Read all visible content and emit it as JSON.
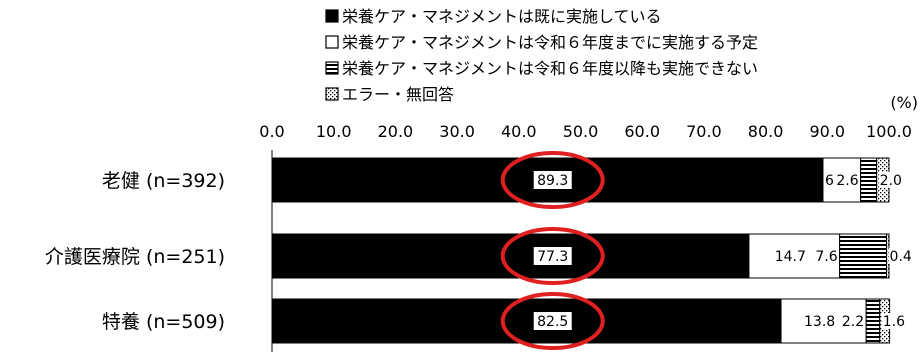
{
  "chart_data": {
    "type": "bar",
    "orientation": "horizontal",
    "stacked": true,
    "unit_label": "(%)",
    "xlim": [
      0,
      100
    ],
    "x_ticks": [
      "0.0",
      "10.0",
      "20.0",
      "30.0",
      "40.0",
      "50.0",
      "60.0",
      "70.0",
      "80.0",
      "90.0",
      "100.0"
    ],
    "categories": [
      "老健 (n=392)",
      "介護医療院 (n=251)",
      "特養 (n=509)"
    ],
    "series": [
      {
        "name": "栄養ケア・マネジメントは既に実施している",
        "values": [
          89.3,
          77.3,
          82.5
        ],
        "labels": [
          "89.3",
          "77.3",
          "82.5"
        ],
        "fill": "#000000",
        "pattern": "solid"
      },
      {
        "name": "栄養ケア・マネジメントは令和６年度までに実施する予定",
        "values": [
          6.1,
          14.7,
          13.8
        ],
        "labels": [
          "6.1",
          "14.7",
          "13.8"
        ],
        "fill": "#ffffff",
        "pattern": "blank"
      },
      {
        "name": "栄養ケア・マネジメントは令和６年度以降も実施できない",
        "values": [
          2.6,
          7.6,
          2.2
        ],
        "labels": [
          "2.6",
          "7.6",
          "2.2"
        ],
        "fill": "#ffffff",
        "pattern": "horizontal-stripes"
      },
      {
        "name": "エラー・無回答",
        "values": [
          2.0,
          0.4,
          1.6
        ],
        "labels": [
          "2.0",
          "0.4",
          "1.6"
        ],
        "fill": "#ffffff",
        "pattern": "dots"
      }
    ],
    "legend_position": "top",
    "highlight": {
      "type": "ellipse",
      "color": "#e02020",
      "targets": "first-series-value-labels"
    },
    "grid": false
  }
}
